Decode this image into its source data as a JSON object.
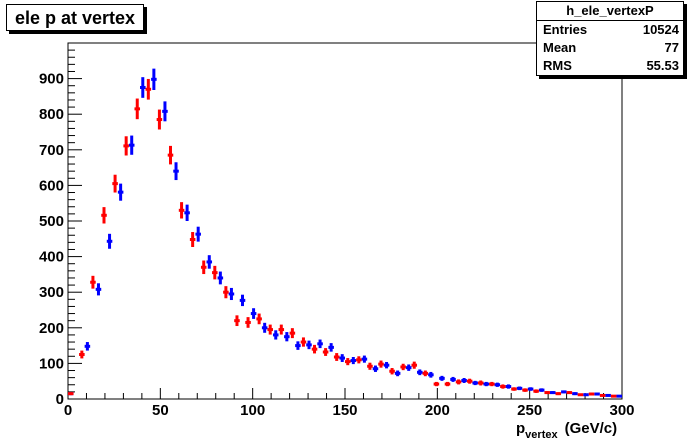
{
  "chart_data": {
    "type": "scatter",
    "title": "ele p at vertex",
    "stats": {
      "name": "h_ele_vertexP",
      "rows": [
        {
          "label": "Entries",
          "value": "10524"
        },
        {
          "label": "Mean",
          "value": "77"
        },
        {
          "label": "RMS",
          "value": "55.53"
        }
      ]
    },
    "xlabel": {
      "main": "p",
      "sub": "vertex",
      "unit": "(GeV/c)"
    },
    "ylabel": "",
    "xlim": [
      0,
      300
    ],
    "ylim": [
      0,
      1000
    ],
    "x_ticks": [
      "0",
      "50",
      "100",
      "150",
      "200",
      "250",
      "300"
    ],
    "y_ticks": [
      "0",
      "100",
      "200",
      "300",
      "400",
      "500",
      "600",
      "700",
      "800",
      "900"
    ],
    "grid": false,
    "legend": "none",
    "bin_width": 3,
    "series": [
      {
        "color": "#0000ff",
        "x": [
          1.5,
          10.5,
          16.5,
          22.5,
          28.5,
          34.5,
          40.5,
          46.5,
          52.5,
          58.5,
          64.5,
          70.5,
          76.5,
          82.5,
          88.5,
          94.5,
          100.5,
          106.5,
          112.5,
          118.5,
          124.5,
          130.5,
          136.5,
          142.5,
          148.5,
          154.5,
          160.5,
          166.5,
          172.5,
          178.5,
          184.5,
          190.5,
          196.5,
          202.5,
          208.5,
          214.5,
          220.5,
          226.5,
          232.5,
          238.5,
          244.5,
          250.5,
          256.5,
          262.5,
          268.5,
          274.5,
          280.5,
          286.5,
          292.5,
          298.5
        ],
        "y": [
          15,
          148,
          308,
          443,
          581,
          713,
          875,
          898,
          808,
          640,
          523,
          463,
          385,
          340,
          295,
          277,
          240,
          200,
          180,
          175,
          150,
          152,
          155,
          145,
          115,
          108,
          112,
          85,
          95,
          72,
          88,
          75,
          68,
          58,
          55,
          52,
          45,
          42,
          40,
          35,
          30,
          28,
          25,
          18,
          20,
          15,
          12,
          14,
          10,
          8
        ],
        "err": [
          4,
          12,
          17,
          21,
          24,
          27,
          29,
          30,
          28,
          25,
          23,
          21,
          19,
          18,
          17,
          16,
          15,
          14,
          13,
          13,
          12,
          12,
          12,
          12,
          11,
          10,
          10,
          9,
          9,
          8,
          9,
          8,
          8,
          7,
          7,
          7,
          6,
          6,
          6,
          6,
          5,
          5,
          5,
          4,
          4,
          4,
          3,
          4,
          3,
          3
        ]
      },
      {
        "color": "#ff0000",
        "x": [
          1.5,
          7.5,
          13.5,
          19.5,
          25.5,
          31.5,
          37.5,
          43.5,
          49.5,
          55.5,
          61.5,
          67.5,
          73.5,
          79.5,
          85.5,
          91.5,
          97.5,
          103.5,
          109.5,
          115.5,
          121.5,
          127.5,
          133.5,
          139.5,
          145.5,
          151.5,
          157.5,
          163.5,
          169.5,
          175.5,
          181.5,
          187.5,
          193.5,
          199.5,
          205.5,
          211.5,
          217.5,
          223.5,
          229.5,
          235.5,
          241.5,
          247.5,
          253.5,
          259.5,
          265.5,
          271.5,
          277.5,
          283.5,
          289.5,
          295.5
        ],
        "y": [
          15,
          125,
          328,
          516,
          605,
          711,
          815,
          870,
          785,
          685,
          530,
          448,
          370,
          355,
          300,
          220,
          215,
          225,
          195,
          195,
          185,
          160,
          140,
          132,
          118,
          105,
          110,
          92,
          98,
          78,
          90,
          95,
          72,
          42,
          42,
          48,
          50,
          45,
          42,
          35,
          28,
          25,
          22,
          18,
          15,
          18,
          12,
          14,
          10,
          8
        ],
        "err": [
          4,
          11,
          18,
          23,
          25,
          27,
          29,
          29,
          28,
          26,
          23,
          21,
          19,
          19,
          17,
          15,
          15,
          15,
          14,
          14,
          14,
          13,
          12,
          11,
          11,
          10,
          10,
          10,
          10,
          9,
          9,
          10,
          8,
          6,
          6,
          7,
          7,
          7,
          6,
          6,
          5,
          5,
          5,
          4,
          4,
          4,
          3,
          4,
          3,
          3
        ]
      }
    ]
  }
}
